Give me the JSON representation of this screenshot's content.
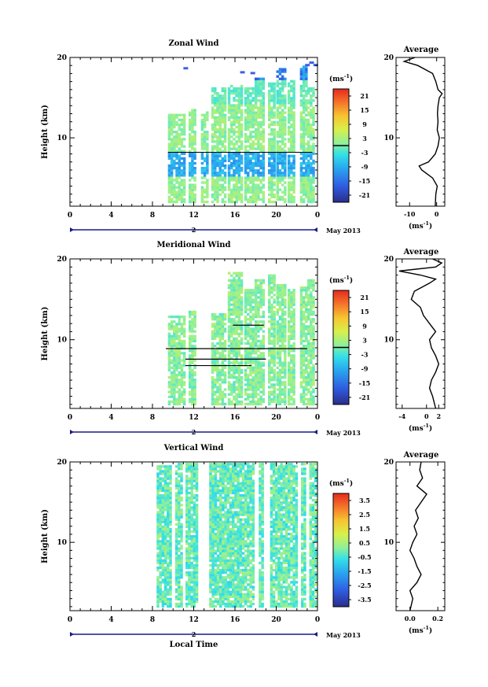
{
  "chart_data": [
    {
      "type": "heatmap",
      "title": "Zonal Wind",
      "ylabel": "Height (km)",
      "unit": "(ms",
      "unit_exp": "-1",
      "x_ticks": [
        "0",
        "4",
        "8",
        "12",
        "16",
        "20",
        "0"
      ],
      "y_ticks": [
        "10",
        "20"
      ],
      "xlim": [
        0,
        24
      ],
      "ylim": [
        1.5,
        20
      ],
      "date_label": "2",
      "month_label": "May 2013",
      "colorbar_ticks": [
        "21",
        "15",
        "9",
        "3",
        "-3",
        "-9",
        "-15",
        "-21"
      ],
      "colorbar_range": [
        -24,
        24
      ],
      "segments": [
        [
          9.5,
          11.2
        ],
        [
          11.5,
          12.2
        ],
        [
          12.7,
          13.3
        ],
        [
          13.7,
          15.1
        ],
        [
          15.3,
          16.6
        ],
        [
          16.9,
          17.8
        ],
        [
          17.9,
          18.7
        ],
        [
          19.2,
          19.7
        ],
        [
          20.0,
          20.8
        ],
        [
          21.1,
          21.8
        ],
        [
          22.3,
          22.9
        ],
        [
          23.0,
          23.7
        ]
      ],
      "average": {
        "title": "Average",
        "xlim": [
          -15,
          3
        ],
        "x_ticks": [
          "-10",
          "0"
        ],
        "profile": [
          [
            1.5,
            -0.5
          ],
          [
            3,
            -0.3
          ],
          [
            4,
            0.2
          ],
          [
            5,
            -1.5
          ],
          [
            6,
            -5.5
          ],
          [
            6.5,
            -6.5
          ],
          [
            7,
            -3
          ],
          [
            8,
            -0.5
          ],
          [
            9,
            0.5
          ],
          [
            10,
            1
          ],
          [
            11,
            0.2
          ],
          [
            12,
            0.5
          ],
          [
            13,
            0.3
          ],
          [
            14,
            0.5
          ],
          [
            15,
            1
          ],
          [
            15.5,
            2
          ],
          [
            16,
            0.5
          ],
          [
            17,
            -0.3
          ],
          [
            18,
            -1.5
          ],
          [
            19,
            -7
          ],
          [
            19.5,
            -12
          ],
          [
            20,
            -8
          ]
        ]
      }
    },
    {
      "type": "heatmap",
      "title": "Meridional Wind",
      "ylabel": "Height (km)",
      "unit": "(ms",
      "unit_exp": "-1",
      "x_ticks": [
        "0",
        "4",
        "8",
        "12",
        "16",
        "20",
        "0"
      ],
      "y_ticks": [
        "10",
        "20"
      ],
      "xlim": [
        0,
        24
      ],
      "ylim": [
        1.5,
        20
      ],
      "date_label": "2",
      "month_label": "May 2013",
      "colorbar_ticks": [
        "21",
        "15",
        "9",
        "3",
        "-3",
        "-9",
        "-15",
        "-21"
      ],
      "colorbar_range": [
        -24,
        24
      ],
      "segments": [
        [
          9.5,
          11.2
        ],
        [
          11.5,
          12.2
        ],
        [
          13.7,
          15.1
        ],
        [
          15.3,
          16.6
        ],
        [
          16.9,
          17.8
        ],
        [
          17.9,
          18.7
        ],
        [
          19.2,
          19.7
        ],
        [
          20.0,
          20.8
        ],
        [
          21.1,
          21.8
        ],
        [
          22.3,
          22.9
        ],
        [
          23.0,
          23.7
        ]
      ],
      "average": {
        "title": "Average",
        "xlim": [
          -5,
          3
        ],
        "x_ticks": [
          "-4",
          "0",
          "2"
        ],
        "profile": [
          [
            1.5,
            1.5
          ],
          [
            3,
            1
          ],
          [
            4,
            0.5
          ],
          [
            5,
            0.8
          ],
          [
            6,
            1.5
          ],
          [
            7,
            2
          ],
          [
            8,
            1.5
          ],
          [
            9,
            0.8
          ],
          [
            10,
            0.5
          ],
          [
            11,
            1.5
          ],
          [
            12,
            0.5
          ],
          [
            13,
            -0.5
          ],
          [
            14,
            -1
          ],
          [
            15,
            -2.5
          ],
          [
            16,
            -2
          ],
          [
            17,
            0.5
          ],
          [
            17.5,
            1.5
          ],
          [
            18,
            -1
          ],
          [
            18.5,
            -4.5
          ],
          [
            19,
            1.5
          ],
          [
            19.5,
            2.5
          ],
          [
            20,
            1
          ]
        ]
      }
    },
    {
      "type": "heatmap",
      "title": "Vertical Wind",
      "ylabel": "Height (km)",
      "xlabel": "Local Time",
      "unit": "(ms",
      "unit_exp": "-1",
      "x_ticks": [
        "0",
        "4",
        "8",
        "12",
        "16",
        "20",
        "0"
      ],
      "y_ticks": [
        "10",
        "20"
      ],
      "xlim": [
        0,
        24
      ],
      "ylim": [
        1.5,
        20
      ],
      "date_label": "2",
      "month_label": "May 2013",
      "colorbar_ticks": [
        "3.5",
        "2.5",
        "1.5",
        "0.5",
        "-0.5",
        "-1.5",
        "-2.5",
        "-3.5"
      ],
      "colorbar_range": [
        -4,
        4
      ],
      "segments": [
        [
          8.4,
          9.8
        ],
        [
          10.2,
          10.9
        ],
        [
          11.2,
          12.4
        ],
        [
          13.5,
          17.7
        ],
        [
          18.3,
          18.6
        ],
        [
          19.4,
          21.9
        ],
        [
          22.4,
          22.8
        ],
        [
          23.2,
          23.9
        ]
      ],
      "average": {
        "title": "Average",
        "xlim": [
          -0.1,
          0.25
        ],
        "x_ticks": [
          "0.0",
          "0.2"
        ],
        "profile": [
          [
            1.5,
            0.0
          ],
          [
            3,
            0.02
          ],
          [
            4,
            0.0
          ],
          [
            5,
            0.05
          ],
          [
            6,
            0.08
          ],
          [
            7,
            0.05
          ],
          [
            8,
            0.03
          ],
          [
            9,
            0.0
          ],
          [
            10,
            0.02
          ],
          [
            11,
            0.05
          ],
          [
            12,
            0.03
          ],
          [
            13,
            0.06
          ],
          [
            14,
            0.04
          ],
          [
            15,
            0.08
          ],
          [
            16,
            0.12
          ],
          [
            17,
            0.05
          ],
          [
            18,
            0.09
          ],
          [
            19,
            0.07
          ],
          [
            20,
            0.08
          ]
        ]
      }
    }
  ]
}
